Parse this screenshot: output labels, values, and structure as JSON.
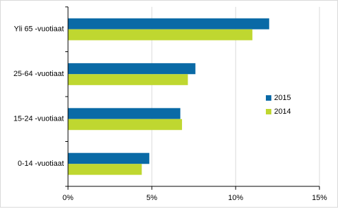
{
  "chart_data": {
    "type": "bar",
    "orientation": "horizontal",
    "categories": [
      "Yli 65 -vuotiaat",
      "25-64 -vuotiaat",
      "15-24 -vuotiaat",
      "0-14 -vuotiaat"
    ],
    "series": [
      {
        "name": "2015",
        "color": "#0a6aa6",
        "values": [
          12.0,
          7.6,
          6.7,
          4.85
        ]
      },
      {
        "name": "2014",
        "color": "#bfd730",
        "values": [
          11.0,
          7.15,
          6.8,
          4.4
        ]
      }
    ],
    "xlim": [
      0,
      15
    ],
    "xticks": [
      {
        "value": 0,
        "label": "0%"
      },
      {
        "value": 5,
        "label": "5%"
      },
      {
        "value": 10,
        "label": "10%"
      },
      {
        "value": 15,
        "label": "15%"
      }
    ],
    "grid": true,
    "legend": "right"
  }
}
